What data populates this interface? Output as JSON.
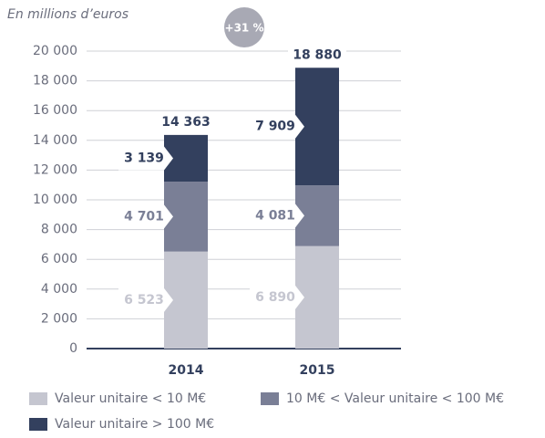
{
  "chart_data": {
    "type": "stacked_bar",
    "y_axis_label": "En millions d’euros",
    "annotation": "+31 %",
    "categories": [
      "2014",
      "2015"
    ],
    "series": [
      {
        "name": "Valeur unitaire < 10 M€",
        "color": "#c5c6d0",
        "values": [
          6523,
          6890
        ],
        "value_labels": [
          "6 523",
          "6 890"
        ]
      },
      {
        "name": "10 M€ < Valeur unitaire < 100 M€",
        "color": "#7a7f96",
        "values": [
          4701,
          4081
        ],
        "value_labels": [
          "4 701",
          "4 081"
        ]
      },
      {
        "name": "Valeur unitaire > 100 M€",
        "color": "#33405e",
        "values": [
          3139,
          7909
        ],
        "value_labels": [
          "3 139",
          "7 909"
        ]
      }
    ],
    "totals": [
      14363,
      18880
    ],
    "total_labels": [
      "14 363",
      "18 880"
    ],
    "ylim": [
      0,
      20000
    ],
    "yticks": [
      0,
      {
        "value": 2000,
        "label": "2 000"
      },
      {
        "value": 4000,
        "label": "4 000"
      },
      {
        "value": 6000,
        "label": "6 000"
      },
      {
        "value": 8000,
        "label": "8 000"
      },
      {
        "value": 10000,
        "label": "10 000"
      },
      {
        "value": 12000,
        "label": "12 000"
      },
      {
        "value": 14000,
        "label": "14 000"
      },
      {
        "value": 16000,
        "label": "16 000"
      },
      {
        "value": 18000,
        "label": "18 000"
      },
      {
        "value": 20000,
        "label": "20 000"
      }
    ],
    "grid": true
  }
}
